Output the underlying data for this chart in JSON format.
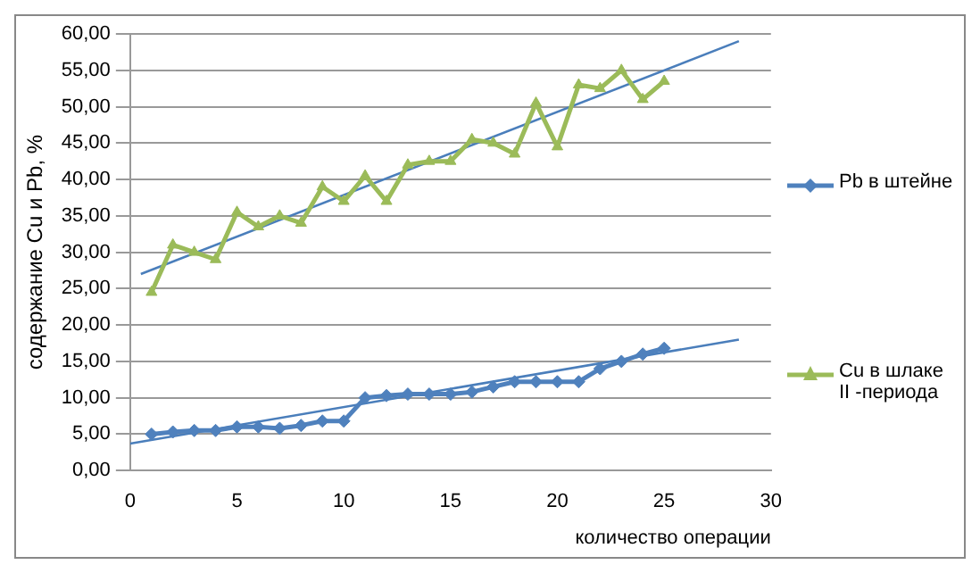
{
  "chart_data": {
    "type": "line",
    "xlabel": "количество операции",
    "ylabel": "содержание Cu и Pb, %",
    "x": [
      1,
      2,
      3,
      4,
      5,
      6,
      7,
      8,
      9,
      10,
      11,
      12,
      13,
      14,
      15,
      16,
      17,
      18,
      19,
      20,
      21,
      22,
      23,
      24,
      25
    ],
    "series": [
      {
        "name": "Pb в штейне",
        "color": "#4f81bd",
        "marker": "diamond",
        "values": [
          5.0,
          5.3,
          5.5,
          5.5,
          6.0,
          6.0,
          5.8,
          6.2,
          6.8,
          6.8,
          10.0,
          10.3,
          10.5,
          10.5,
          10.5,
          10.8,
          11.5,
          12.2,
          12.2,
          12.2,
          12.2,
          14.0,
          15.0,
          16.0,
          16.8
        ]
      },
      {
        "name": "Cu в шлаке II -периода",
        "color": "#9bbb59",
        "marker": "triangle",
        "values": [
          24.5,
          31.0,
          30.0,
          29.0,
          35.5,
          33.5,
          35.0,
          34.0,
          39.0,
          37.0,
          40.5,
          37.0,
          42.0,
          42.5,
          42.5,
          45.5,
          45.0,
          43.5,
          50.5,
          44.5,
          53.0,
          52.5,
          55.0,
          51.0,
          53.5
        ]
      },
      {
        "type": "line",
        "color": "#4a7ebb",
        "marker": "none",
        "x": [
          0,
          28.5
        ],
        "values": [
          3.7,
          18.0
        ]
      },
      {
        "type": "line",
        "color": "#4a7ebb",
        "marker": "none",
        "x": [
          0.5,
          28.5
        ],
        "values": [
          27.0,
          59.0
        ]
      }
    ],
    "xlim": [
      0,
      30
    ],
    "xticks": [
      0,
      5,
      10,
      15,
      20,
      25,
      30
    ],
    "ylim": [
      0,
      60
    ],
    "yticks": [
      {
        "value": 0,
        "label": "0,00"
      },
      {
        "value": 5,
        "label": "5,00"
      },
      {
        "value": 10,
        "label": "10,00"
      },
      {
        "value": 15,
        "label": "15,00"
      },
      {
        "value": 20,
        "label": "20,00"
      },
      {
        "value": 25,
        "label": "25,00"
      },
      {
        "value": 30,
        "label": "30,00"
      },
      {
        "value": 35,
        "label": "35,00"
      },
      {
        "value": 40,
        "label": "40,00"
      },
      {
        "value": 45,
        "label": "45,00"
      },
      {
        "value": 50,
        "label": "50,00"
      },
      {
        "value": 55,
        "label": "55,00"
      },
      {
        "value": 60,
        "label": "60,00"
      }
    ],
    "grid": "y",
    "legend": "right"
  }
}
